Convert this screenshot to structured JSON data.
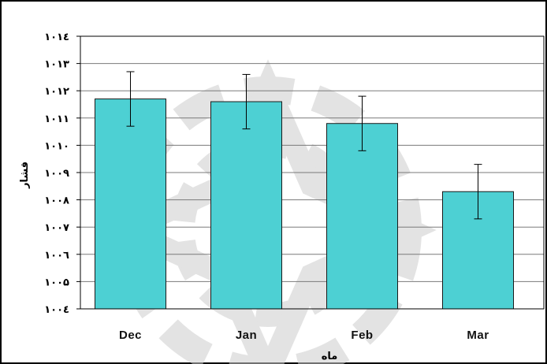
{
  "chart_data": {
    "type": "bar",
    "categories": [
      "Dec",
      "Jan",
      "Feb",
      "Mar"
    ],
    "values": [
      1011.7,
      1011.6,
      1010.8,
      1008.3
    ],
    "error": [
      1.0,
      1.0,
      1.0,
      1.0
    ],
    "ylim": [
      1004,
      1014
    ],
    "yticks": [
      {
        "value": 1004,
        "label": "۱۰۰٤"
      },
      {
        "value": 1005,
        "label": "۱۰۰۵"
      },
      {
        "value": 1006,
        "label": "۱۰۰٦"
      },
      {
        "value": 1007,
        "label": "۱۰۰۷"
      },
      {
        "value": 1008,
        "label": "۱۰۰۸"
      },
      {
        "value": 1009,
        "label": "۱۰۰۹"
      },
      {
        "value": 1010,
        "label": "۱۰۱۰"
      },
      {
        "value": 1011,
        "label": "۱۰۱۱"
      },
      {
        "value": 1012,
        "label": "۱۰۱۲"
      },
      {
        "value": 1013,
        "label": "۱۰۱۳"
      },
      {
        "value": 1014,
        "label": "۱۰۱٤"
      }
    ],
    "xlabel": "ماه",
    "ylabel": "فشار",
    "grid": true,
    "legend": "none",
    "colors": {
      "bar": "#4dd0d3",
      "bar_edge": "#1a1a1a",
      "grid": "#7a7a7a",
      "watermark": "#c8c8c8"
    }
  }
}
